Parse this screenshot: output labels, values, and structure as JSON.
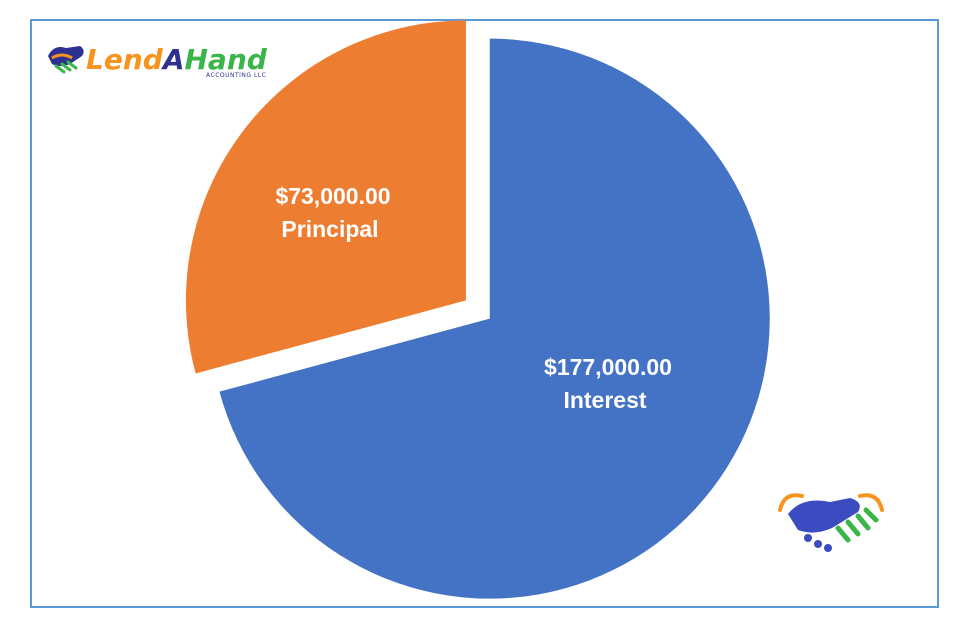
{
  "brand": {
    "name_part1": "Lend",
    "name_part2": "A",
    "name_part3": "Hand",
    "subtitle": "ACCOUNTING LLC",
    "colors": {
      "orange": "#F7941D",
      "blue": "#2E3192",
      "green": "#39B54A",
      "mark_blue": "#3B4CC0"
    },
    "icons": [
      "handshake-icon"
    ]
  },
  "chart_data": {
    "type": "pie",
    "start_angle_deg": 0,
    "exploded": true,
    "slices": [
      {
        "label": "Interest",
        "value_label": "$177,000.00",
        "value": 177000,
        "color": "#4472C4"
      },
      {
        "label": "Principal",
        "value_label": "$73,000.00",
        "value": 73000,
        "color": "#ED7D31"
      }
    ]
  }
}
